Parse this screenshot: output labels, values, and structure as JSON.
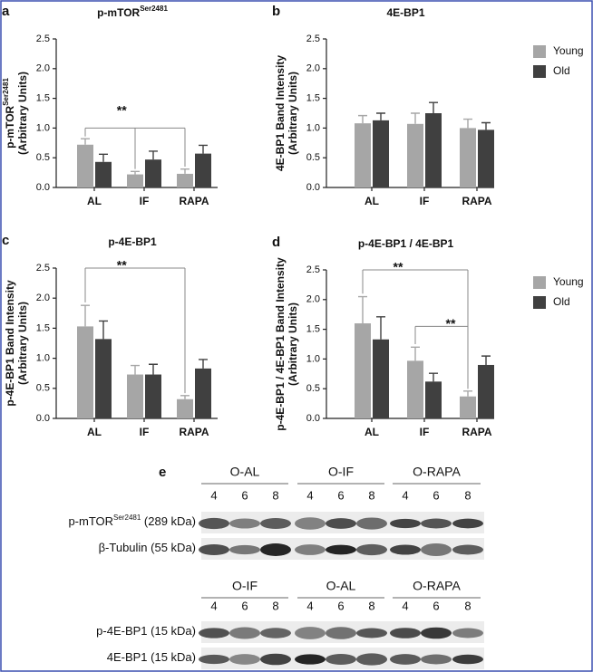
{
  "chart_data": [
    {
      "type": "bar",
      "panel": "a",
      "title": "p-mTOR",
      "title_sup": "Ser2481",
      "ylabel": [
        "p-mTOR",
        "(Arbitrary Units)"
      ],
      "ylabel_sup": "Ser2481",
      "categories": [
        "AL",
        "IF",
        "RAPA"
      ],
      "series": [
        {
          "color": "#a6a6a6",
          "values": [
            0.72,
            0.22,
            0.23
          ],
          "errors": [
            0.1,
            0.05,
            0.08
          ]
        },
        {
          "color": "#404040",
          "values": [
            0.43,
            0.47,
            0.57
          ],
          "errors": [
            0.13,
            0.14,
            0.14
          ]
        }
      ],
      "ylim": [
        0,
        2.5
      ],
      "yticks": [
        {
          "value": 0,
          "label": "0.0"
        },
        0.5,
        {
          "value": 1,
          "label": "1.0"
        },
        1.5,
        {
          "value": 2,
          "label": "2.0"
        },
        2.5
      ],
      "annotations": [
        {
          "text": "**"
        }
      ]
    },
    {
      "type": "bar",
      "panel": "b",
      "title": "4E-BP1",
      "ylabel": [
        "4E-BP1 Band Intensity",
        "(Arbitrary Units)"
      ],
      "categories": [
        "AL",
        "IF",
        "RAPA"
      ],
      "series": [
        {
          "name": "Young",
          "color": "#a6a6a6",
          "values": [
            1.08,
            1.07,
            1.0
          ],
          "errors": [
            0.13,
            0.18,
            0.15
          ]
        },
        {
          "name": "Old",
          "color": "#404040",
          "values": [
            1.13,
            1.25,
            0.97
          ],
          "errors": [
            0.12,
            0.18,
            0.12
          ]
        }
      ],
      "ylim": [
        0,
        2.5
      ],
      "yticks": [
        {
          "value": 0,
          "label": "0.0"
        },
        0.5,
        {
          "value": 1,
          "label": "1.0"
        },
        1.5,
        {
          "value": 2,
          "label": "2.0"
        },
        2.5
      ],
      "legend": "right",
      "annotations": []
    },
    {
      "type": "bar",
      "panel": "c",
      "title": "p-4E-BP1",
      "ylabel": [
        "p-4E-BP1 Band Intensity",
        "(Arbitrary Units)"
      ],
      "categories": [
        "AL",
        "IF",
        "RAPA"
      ],
      "series": [
        {
          "color": "#a6a6a6",
          "values": [
            1.53,
            0.73,
            0.32
          ],
          "errors": [
            0.35,
            0.15,
            0.06
          ]
        },
        {
          "color": "#404040",
          "values": [
            1.32,
            0.73,
            0.83
          ],
          "errors": [
            0.3,
            0.17,
            0.15
          ]
        }
      ],
      "ylim": [
        0,
        2.5
      ],
      "yticks": [
        {
          "value": 0,
          "label": "0.0"
        },
        0.5,
        {
          "value": 1,
          "label": "1.0"
        },
        1.5,
        {
          "value": 2,
          "label": "2.0"
        },
        2.5
      ],
      "annotations": [
        {
          "text": "**"
        }
      ]
    },
    {
      "type": "bar",
      "panel": "d",
      "title": "p-4E-BP1 / 4E-BP1",
      "ylabel": [
        "p-4E-BP1 / 4E-BP1 Band Intensity",
        "(Arbitrary Units)"
      ],
      "categories": [
        "AL",
        "IF",
        "RAPA"
      ],
      "series": [
        {
          "name": "Young",
          "color": "#a6a6a6",
          "values": [
            1.6,
            0.97,
            0.37
          ],
          "errors": [
            0.45,
            0.23,
            0.09
          ]
        },
        {
          "name": "Old",
          "color": "#404040",
          "values": [
            1.33,
            0.62,
            0.9
          ],
          "errors": [
            0.38,
            0.14,
            0.15
          ]
        }
      ],
      "ylim": [
        0,
        2.5
      ],
      "yticks": [
        {
          "value": 0,
          "label": "0.0"
        },
        0.5,
        {
          "value": 1,
          "label": "1.0"
        },
        1.5,
        {
          "value": 2,
          "label": "2.0"
        },
        2.5
      ],
      "legend": "right",
      "annotations": [
        {
          "text": "**"
        },
        {
          "text": "**"
        }
      ]
    }
  ],
  "blot": {
    "panel": "e",
    "sections": [
      {
        "groups": [
          {
            "label": "O-AL",
            "lanes": [
              "4",
              "6",
              "8"
            ]
          },
          {
            "label": "O-IF",
            "lanes": [
              "4",
              "6",
              "8"
            ]
          },
          {
            "label": "O-RAPA",
            "lanes": [
              "4",
              "6",
              "8"
            ]
          }
        ],
        "rows": [
          {
            "label": "p-mTOR",
            "sup": "Ser2481",
            "suffix": " (289 kDa)"
          },
          {
            "label": "β-Tubulin (55 kDa)"
          }
        ]
      },
      {
        "groups": [
          {
            "label": "O-IF",
            "lanes": [
              "4",
              "6",
              "8"
            ]
          },
          {
            "label": "O-AL",
            "lanes": [
              "4",
              "6",
              "8"
            ]
          },
          {
            "label": "O-RAPA",
            "lanes": [
              "4",
              "6",
              "8"
            ]
          }
        ],
        "rows": [
          {
            "label": "p-4E-BP1 (15 kDa)"
          },
          {
            "label": "4E-BP1 (15 kDa)"
          }
        ]
      }
    ]
  }
}
